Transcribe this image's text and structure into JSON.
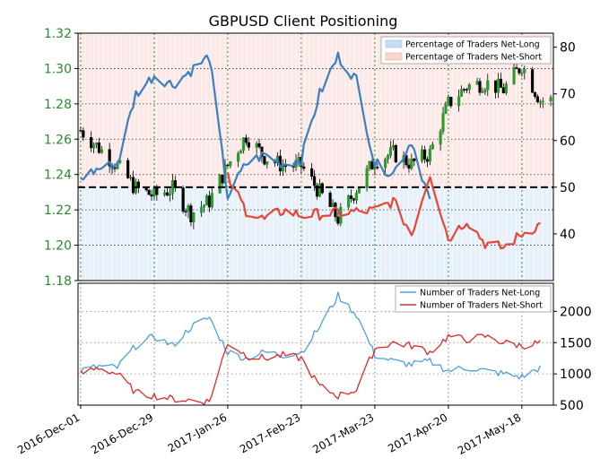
{
  "chart_data": {
    "type": "line",
    "title": "GBPUSD Client Positioning",
    "x_labels": [
      "2016-Dec-01",
      "2016-Dec-29",
      "2017-Jan-26",
      "2017-Feb-23",
      "2017-Mar-23",
      "2017-Apr-20",
      "2017-May-18"
    ],
    "top_panel": {
      "left_axis": {
        "ticks": [
          "1.18",
          "1.20",
          "1.22",
          "1.24",
          "1.26",
          "1.28",
          "1.30",
          "1.32"
        ],
        "ylim": [
          1.18,
          1.32
        ]
      },
      "right_axis": {
        "ticks": [
          "40",
          "50",
          "60",
          "70",
          "80"
        ],
        "ylim": [
          30,
          83
        ]
      },
      "reference_line": 50,
      "legend": [
        "Percentage of Traders Net-Long",
        "Percentage of Traders Net-Short"
      ],
      "price_candles_approx": [
        {
          "date": "2016-Dec-01",
          "close": 1.265
        },
        {
          "date": "2016-Dec-08",
          "close": 1.255
        },
        {
          "date": "2016-Dec-15",
          "close": 1.245
        },
        {
          "date": "2016-Dec-22",
          "close": 1.232
        },
        {
          "date": "2016-Dec-29",
          "close": 1.228
        },
        {
          "date": "2017-Jan-05",
          "close": 1.232
        },
        {
          "date": "2017-Jan-12",
          "close": 1.218
        },
        {
          "date": "2017-Jan-19",
          "close": 1.225
        },
        {
          "date": "2017-Jan-26",
          "close": 1.245
        },
        {
          "date": "2017-Feb-02",
          "close": 1.262
        },
        {
          "date": "2017-Feb-09",
          "close": 1.25
        },
        {
          "date": "2017-Feb-16",
          "close": 1.245
        },
        {
          "date": "2017-Feb-23",
          "close": 1.245
        },
        {
          "date": "2017-Mar-02",
          "close": 1.23
        },
        {
          "date": "2017-Mar-09",
          "close": 1.215
        },
        {
          "date": "2017-Mar-16",
          "close": 1.232
        },
        {
          "date": "2017-Mar-23",
          "close": 1.248
        },
        {
          "date": "2017-Mar-30",
          "close": 1.252
        },
        {
          "date": "2017-Apr-06",
          "close": 1.246
        },
        {
          "date": "2017-Apr-13",
          "close": 1.252
        },
        {
          "date": "2017-Apr-20",
          "close": 1.28
        },
        {
          "date": "2017-Apr-27",
          "close": 1.29
        },
        {
          "date": "2017-May-04",
          "close": 1.292
        },
        {
          "date": "2017-May-11",
          "close": 1.288
        },
        {
          "date": "2017-May-18",
          "close": 1.302
        },
        {
          "date": "2017-May-25",
          "close": 1.282
        }
      ],
      "net_long_pct_approx": [
        {
          "date": "2016-Dec-01",
          "value": 52
        },
        {
          "date": "2016-Dec-08",
          "value": 54
        },
        {
          "date": "2016-Dec-15",
          "value": 55
        },
        {
          "date": "2016-Dec-22",
          "value": 70
        },
        {
          "date": "2016-Dec-29",
          "value": 74
        },
        {
          "date": "2017-Jan-05",
          "value": 72
        },
        {
          "date": "2017-Jan-12",
          "value": 75
        },
        {
          "date": "2017-Jan-19",
          "value": 78
        },
        {
          "date": "2017-Jan-26",
          "value": 48
        },
        {
          "date": "2017-Feb-02",
          "value": 55
        },
        {
          "date": "2017-Feb-09",
          "value": 57
        },
        {
          "date": "2017-Feb-16",
          "value": 55
        },
        {
          "date": "2017-Feb-23",
          "value": 56
        },
        {
          "date": "2017-Mar-02",
          "value": 70
        },
        {
          "date": "2017-Mar-09",
          "value": 78
        },
        {
          "date": "2017-Mar-16",
          "value": 73
        },
        {
          "date": "2017-Mar-23",
          "value": 55
        },
        {
          "date": "2017-Mar-30",
          "value": 53
        },
        {
          "date": "2017-Apr-06",
          "value": 60
        },
        {
          "date": "2017-Apr-13",
          "value": 47
        }
      ],
      "net_short_pct_approx": [
        {
          "date": "2017-Jan-26",
          "value": 52
        },
        {
          "date": "2017-Feb-02",
          "value": 45
        },
        {
          "date": "2017-Feb-09",
          "value": 43
        },
        {
          "date": "2017-Feb-16",
          "value": 45
        },
        {
          "date": "2017-Feb-23",
          "value": 44
        },
        {
          "date": "2017-Mar-23",
          "value": 45
        },
        {
          "date": "2017-Mar-30",
          "value": 47
        },
        {
          "date": "2017-Apr-06",
          "value": 40
        },
        {
          "date": "2017-Apr-13",
          "value": 53
        },
        {
          "date": "2017-Apr-20",
          "value": 39
        },
        {
          "date": "2017-Apr-27",
          "value": 43
        },
        {
          "date": "2017-May-04",
          "value": 38
        },
        {
          "date": "2017-May-11",
          "value": 37
        },
        {
          "date": "2017-May-18",
          "value": 40
        },
        {
          "date": "2017-May-25",
          "value": 42
        }
      ]
    },
    "bottom_panel": {
      "right_axis": {
        "ticks": [
          "500",
          "1000",
          "1500",
          "2000"
        ],
        "ylim": [
          500,
          2450
        ]
      },
      "legend": [
        "Number of Traders Net-Long",
        "Number of Traders Net-Short"
      ],
      "net_long_count_approx": [
        {
          "date": "2016-Dec-01",
          "value": 1050
        },
        {
          "date": "2016-Dec-08",
          "value": 1120
        },
        {
          "date": "2016-Dec-15",
          "value": 1100
        },
        {
          "date": "2016-Dec-22",
          "value": 1450
        },
        {
          "date": "2016-Dec-29",
          "value": 1600
        },
        {
          "date": "2017-Jan-05",
          "value": 1450
        },
        {
          "date": "2017-Jan-12",
          "value": 1750
        },
        {
          "date": "2017-Jan-19",
          "value": 1900
        },
        {
          "date": "2017-Jan-26",
          "value": 1350
        },
        {
          "date": "2017-Feb-02",
          "value": 1250
        },
        {
          "date": "2017-Feb-09",
          "value": 1350
        },
        {
          "date": "2017-Feb-16",
          "value": 1300
        },
        {
          "date": "2017-Feb-23",
          "value": 1350
        },
        {
          "date": "2017-Mar-02",
          "value": 1750
        },
        {
          "date": "2017-Mar-09",
          "value": 2250
        },
        {
          "date": "2017-Mar-16",
          "value": 1950
        },
        {
          "date": "2017-Mar-23",
          "value": 1300
        },
        {
          "date": "2017-Mar-30",
          "value": 1200
        },
        {
          "date": "2017-Apr-06",
          "value": 1150
        },
        {
          "date": "2017-Apr-13",
          "value": 1200
        },
        {
          "date": "2017-Apr-20",
          "value": 1050
        },
        {
          "date": "2017-Apr-27",
          "value": 1100
        },
        {
          "date": "2017-May-04",
          "value": 1050
        },
        {
          "date": "2017-May-11",
          "value": 1000
        },
        {
          "date": "2017-May-18",
          "value": 950
        },
        {
          "date": "2017-May-25",
          "value": 1100
        }
      ],
      "net_short_count_approx": [
        {
          "date": "2016-Dec-01",
          "value": 1000
        },
        {
          "date": "2016-Dec-08",
          "value": 1100
        },
        {
          "date": "2016-Dec-15",
          "value": 1000
        },
        {
          "date": "2016-Dec-22",
          "value": 700
        },
        {
          "date": "2016-Dec-29",
          "value": 650
        },
        {
          "date": "2017-Jan-05",
          "value": 600
        },
        {
          "date": "2017-Jan-12",
          "value": 580
        },
        {
          "date": "2017-Jan-19",
          "value": 560
        },
        {
          "date": "2017-Jan-26",
          "value": 1500
        },
        {
          "date": "2017-Feb-02",
          "value": 1300
        },
        {
          "date": "2017-Feb-09",
          "value": 1250
        },
        {
          "date": "2017-Feb-16",
          "value": 1300
        },
        {
          "date": "2017-Feb-23",
          "value": 1250
        },
        {
          "date": "2017-Mar-02",
          "value": 800
        },
        {
          "date": "2017-Mar-09",
          "value": 650
        },
        {
          "date": "2017-Mar-16",
          "value": 750
        },
        {
          "date": "2017-Mar-23",
          "value": 1400
        },
        {
          "date": "2017-Mar-30",
          "value": 1500
        },
        {
          "date": "2017-Apr-06",
          "value": 1450
        },
        {
          "date": "2017-Apr-13",
          "value": 1350
        },
        {
          "date": "2017-Apr-20",
          "value": 1600
        },
        {
          "date": "2017-Apr-27",
          "value": 1550
        },
        {
          "date": "2017-May-04",
          "value": 1600
        },
        {
          "date": "2017-May-11",
          "value": 1500
        },
        {
          "date": "2017-May-18",
          "value": 1450
        },
        {
          "date": "2017-May-25",
          "value": 1500
        }
      ]
    }
  },
  "colors": {
    "price_axis": "#2a8a2a",
    "net_long_top": "#3a7fc0",
    "net_short_top": "#e8443a",
    "net_long_bottom": "#4e9fe0",
    "net_short_bottom": "#e02828",
    "long_fill": "#c6ddf2",
    "short_fill": "#f9d6d2",
    "grid_green": "#2a9a2a",
    "grid_gray": "#808080"
  }
}
